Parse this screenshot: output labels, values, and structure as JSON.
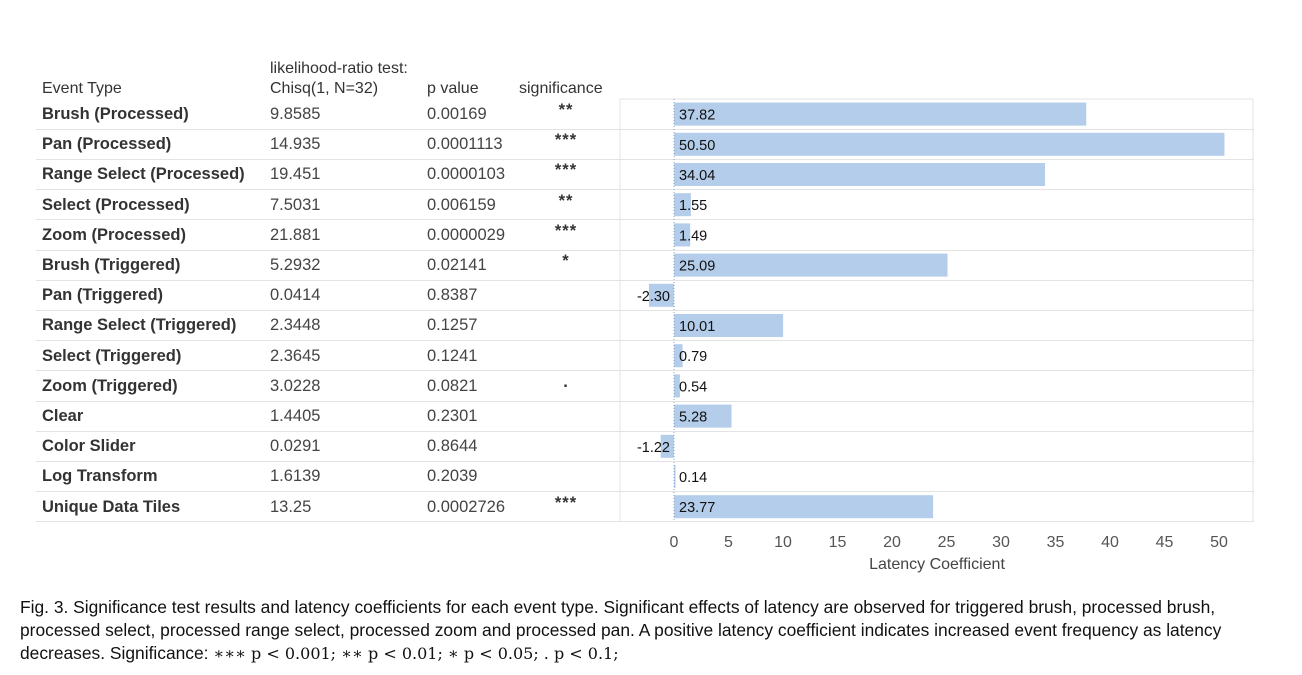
{
  "table": {
    "headers": {
      "event_type": "Event Type",
      "test_line1": "likelihood-ratio test:",
      "test_line2": "Chisq(1, N=32)",
      "p_value": "p value",
      "significance": "significance"
    },
    "rows": [
      {
        "event": "Brush (Processed)",
        "chisq": "9.8585",
        "p": "0.00169",
        "sig": "**"
      },
      {
        "event": "Pan (Processed)",
        "chisq": "14.935",
        "p": "0.0001113",
        "sig": "***"
      },
      {
        "event": "Range Select (Processed)",
        "chisq": "19.451",
        "p": "0.0000103",
        "sig": "***"
      },
      {
        "event": "Select (Processed)",
        "chisq": "7.5031",
        "p": "0.006159",
        "sig": "**"
      },
      {
        "event": "Zoom (Processed)",
        "chisq": "21.881",
        "p": "0.0000029",
        "sig": "***"
      },
      {
        "event": "Brush (Triggered)",
        "chisq": "5.2932",
        "p": "0.02141",
        "sig": "*"
      },
      {
        "event": "Pan (Triggered)",
        "chisq": "0.0414",
        "p": "0.8387",
        "sig": ""
      },
      {
        "event": "Range Select (Triggered)",
        "chisq": "2.3448",
        "p": "0.1257",
        "sig": ""
      },
      {
        "event": "Select (Triggered)",
        "chisq": "2.3645",
        "p": "0.1241",
        "sig": ""
      },
      {
        "event": "Zoom (Triggered)",
        "chisq": "3.0228",
        "p": "0.0821",
        "sig": "."
      },
      {
        "event": "Clear",
        "chisq": "1.4405",
        "p": "0.2301",
        "sig": ""
      },
      {
        "event": "Color Slider",
        "chisq": "0.0291",
        "p": "0.8644",
        "sig": ""
      },
      {
        "event": "Log Transform",
        "chisq": "1.6139",
        "p": "0.2039",
        "sig": ""
      },
      {
        "event": "Unique Data Tiles",
        "chisq": "13.25",
        "p": "0.0002726",
        "sig": "***"
      }
    ]
  },
  "chart_data": {
    "type": "bar",
    "orientation": "horizontal",
    "categories": [
      "Brush (Processed)",
      "Pan (Processed)",
      "Range Select (Processed)",
      "Select (Processed)",
      "Zoom (Processed)",
      "Brush (Triggered)",
      "Pan (Triggered)",
      "Range Select (Triggered)",
      "Select (Triggered)",
      "Zoom (Triggered)",
      "Clear",
      "Color Slider",
      "Log Transform",
      "Unique Data Tiles"
    ],
    "values": [
      37.82,
      50.5,
      34.04,
      1.55,
      1.49,
      25.09,
      -2.3,
      10.01,
      0.79,
      0.54,
      5.28,
      -1.22,
      0.14,
      23.77
    ],
    "data_labels": [
      "37.82",
      "50.50",
      "34.04",
      "1.55",
      "1.49",
      "25.09",
      "-2.30",
      "10.01",
      "0.79",
      "0.54",
      "5.28",
      "-1.22",
      "0.14",
      "23.77"
    ],
    "xlabel": "Latency Coefficient",
    "xticks": [
      0,
      5,
      10,
      15,
      20,
      25,
      30,
      35,
      40,
      45,
      50
    ],
    "xlim": [
      -5,
      53
    ],
    "bar_color": "#b4cdea",
    "grid": false
  },
  "caption": {
    "text": "Fig. 3.  Significance test results and latency coefficients for each event type.  Significant effects of latency are observed for triggered brush, processed brush, processed select, processed range select, processed zoom and processed pan. A positive latency coefficient indicates increased event frequency as latency decreases. Significance: ",
    "significance_key": "∗∗∗ p < 0.001;  ∗∗ p < 0.01;  ∗ p < 0.05;  . p < 0.1;"
  }
}
